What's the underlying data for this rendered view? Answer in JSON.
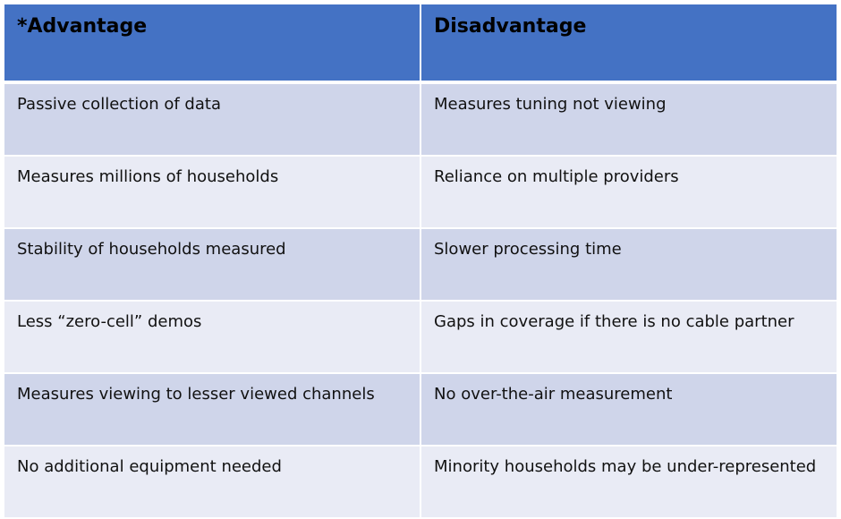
{
  "table": {
    "header": [
      "*Advantage",
      "Disadvantage"
    ],
    "rows": [
      [
        "Passive collection of data",
        "Measures tuning not viewing"
      ],
      [
        "Measures millions of households",
        "Reliance on multiple providers"
      ],
      [
        "Stability of households measured",
        "Slower processing time"
      ],
      [
        "Less “zero-cell” demos",
        "Gaps in coverage if there is no cable partner"
      ],
      [
        "Measures viewing to lesser viewed channels",
        "No over-the-air measurement"
      ],
      [
        "No additional equipment needed",
        "Minority households may be under-represented"
      ]
    ]
  }
}
